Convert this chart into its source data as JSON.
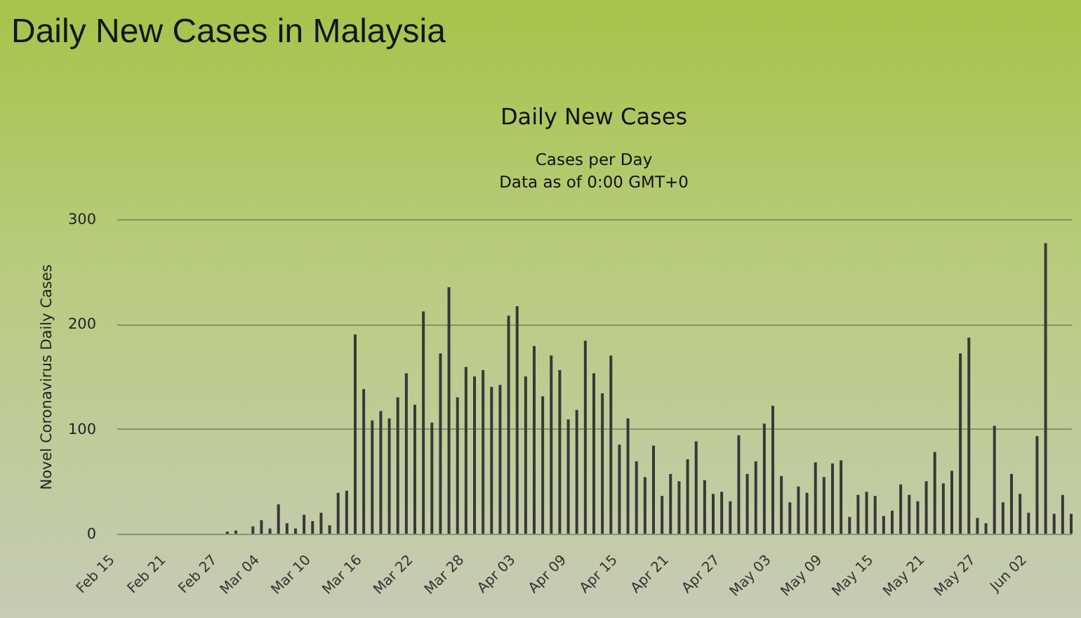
{
  "chart_data": {
    "type": "bar",
    "title": "Daily New Cases",
    "subtitle": "Cases per Day\nData as of 0:00 GMT+0",
    "ylabel": "Novel Coronavirus Daily Cases",
    "annotations": [
      "Daily New Cases in Malaysia"
    ],
    "x": [
      "--02-28",
      "--03-01",
      "--03-03",
      "--03-04",
      "--03-05",
      "--03-06",
      "--03-07",
      "--03-08",
      "--03-09",
      "--03-10",
      "--03-11",
      "--03-12",
      "--03-13",
      "--03-14",
      "--03-15",
      "--03-16",
      "--03-17",
      "--03-18",
      "--03-19",
      "--03-20",
      "--03-21",
      "--03-22",
      "--03-23",
      "--03-24",
      "--03-25",
      "--03-26",
      "--03-27",
      "--03-28",
      "--03-29",
      "--03-30",
      "--03-31",
      "--04-01",
      "--04-02",
      "--04-03",
      "--04-04",
      "--04-05",
      "--04-06",
      "--04-07",
      "--04-08",
      "--04-09",
      "--04-10",
      "--04-11",
      "--04-12",
      "--04-13",
      "--04-14",
      "--04-15",
      "--04-16",
      "--04-17",
      "--04-18",
      "--04-19",
      "--04-20",
      "--04-21",
      "--04-22",
      "--04-23",
      "--04-24",
      "--04-25",
      "--04-26",
      "--04-27",
      "--04-28",
      "--04-29",
      "--04-30",
      "--05-01",
      "--05-02",
      "--05-03",
      "--05-04",
      "--05-05",
      "--05-06",
      "--05-07",
      "--05-08",
      "--05-09",
      "--05-10",
      "--05-11",
      "--05-12",
      "--05-13",
      "--05-14",
      "--05-15",
      "--05-16",
      "--05-17",
      "--05-18",
      "--05-19",
      "--05-20",
      "--05-21",
      "--05-22",
      "--05-23",
      "--05-24",
      "--05-25",
      "--05-26",
      "--05-27",
      "--05-28",
      "--05-29",
      "--05-30",
      "--05-31",
      "--06-01",
      "--06-02",
      "--06-03",
      "--06-04",
      "--06-05",
      "--06-06",
      "--06-07"
    ],
    "values": [
      2,
      3,
      7,
      13,
      5,
      28,
      10,
      5,
      18,
      12,
      20,
      8,
      39,
      41,
      190,
      138,
      108,
      117,
      110,
      130,
      153,
      123,
      212,
      106,
      172,
      235,
      130,
      159,
      150,
      156,
      140,
      142,
      208,
      217,
      150,
      179,
      131,
      170,
      156,
      109,
      118,
      184,
      153,
      134,
      170,
      85,
      110,
      69,
      54,
      84,
      36,
      57,
      50,
      71,
      88,
      51,
      38,
      40,
      31,
      94,
      57,
      69,
      105,
      122,
      55,
      30,
      45,
      39,
      68,
      54,
      67,
      70,
      16,
      37,
      40,
      36,
      17,
      22,
      47,
      37,
      31,
      50,
      78,
      48,
      60,
      172,
      187,
      15,
      10,
      103,
      30,
      57,
      38,
      20,
      93,
      277,
      19,
      37,
      19
    ],
    "color": "#383838",
    "xlim": [
      "--02-15",
      "--06-07"
    ],
    "xticks": [
      {
        "value": "--02-15",
        "label": "Feb 15"
      },
      {
        "value": "--02-21",
        "label": "Feb 21"
      },
      {
        "value": "--02-27",
        "label": "Feb 27"
      },
      {
        "value": "--03-04",
        "label": "Mar 04"
      },
      {
        "value": "--03-10",
        "label": "Mar 10"
      },
      {
        "value": "--03-16",
        "label": "Mar 16"
      },
      {
        "value": "--03-22",
        "label": "Mar 22"
      },
      {
        "value": "--03-28",
        "label": "Mar 28"
      },
      {
        "value": "--04-03",
        "label": "Apr 03"
      },
      {
        "value": "--04-09",
        "label": "Apr 09"
      },
      {
        "value": "--04-15",
        "label": "Apr 15"
      },
      {
        "value": "--04-21",
        "label": "Apr 21"
      },
      {
        "value": "--04-27",
        "label": "Apr 27"
      },
      {
        "value": "--05-03",
        "label": "May 03"
      },
      {
        "value": "--05-09",
        "label": "May 09"
      },
      {
        "value": "--05-15",
        "label": "May 15"
      },
      {
        "value": "--05-21",
        "label": "May 21"
      },
      {
        "value": "--05-27",
        "label": "May 27"
      },
      {
        "value": "--06-02",
        "label": "Jun 02"
      }
    ],
    "ylim": [
      0,
      300
    ],
    "yticks": [
      0,
      100,
      200,
      300
    ],
    "grid": "y"
  }
}
